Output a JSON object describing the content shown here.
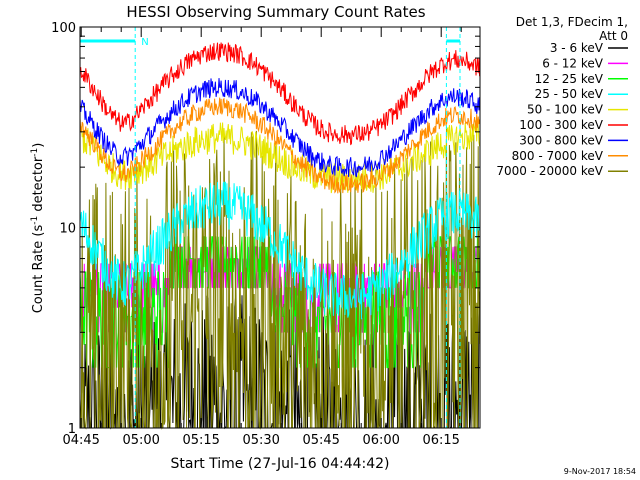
{
  "chart_data": {
    "type": "line",
    "title": "HESSI Observing Summary Count Rates",
    "xlabel": "Start Time (27-Jul-16 04:44:42)",
    "ylabel_parts": [
      "Count Rate (s",
      "-1",
      " detector",
      "-1",
      ")"
    ],
    "y_scale": "log",
    "ylim": [
      1,
      100
    ],
    "y_tick_labels": [
      "1",
      "10",
      "100"
    ],
    "xlim_minutes": [
      0,
      100
    ],
    "x_tick_labels": [
      "04:45",
      "05:00",
      "05:15",
      "05:30",
      "05:45",
      "06:00",
      "06:15"
    ],
    "legend_header": [
      "Det 1,3, FDecim 1,",
      "Att 0"
    ],
    "footer_date": "9-Nov-2017 18:54",
    "night_markers": [
      {
        "from_min": 0,
        "to_min": 13.8,
        "label": "N"
      },
      {
        "from_min": 91.6,
        "to_min": 103.0,
        "label": ""
      }
    ],
    "series": [
      {
        "name": "3 - 6 keV",
        "color": "#000000",
        "shape": "sparse",
        "base": 1.2,
        "peak": 1.6,
        "jitter": 0.6,
        "floor": 1.0
      },
      {
        "name": "6 - 12 keV",
        "color": "#ff00ff",
        "shape": "levels",
        "levels": [
          3.0,
          4.0,
          4.6,
          5.6,
          6.6
        ],
        "peak_levels": [
          5.0,
          6.0,
          7.0,
          8.0
        ]
      },
      {
        "name": "12 - 25 keV",
        "color": "#00ff00",
        "shape": "levels",
        "levels": [
          2.0,
          2.6,
          3.0,
          3.6,
          4.0,
          5.0,
          6.0
        ],
        "peak_levels": [
          5.0,
          6.0,
          7.0,
          8.0,
          9.0
        ]
      },
      {
        "name": "25 - 50 keV",
        "color": "#00ffff",
        "shape": "orbit",
        "base": 4.5,
        "peak": 13.0,
        "jitter": 0.12,
        "edge": 10.5
      },
      {
        "name": "50 - 100 keV",
        "color": "#e6e600",
        "shape": "orbit",
        "base": 17.5,
        "peak": 28.0,
        "jitter": 0.08,
        "edge": 29.0
      },
      {
        "name": "100 - 300 keV",
        "color": "#ff0000",
        "shape": "orbit",
        "base": 29.0,
        "peak": 76.0,
        "jitter": 0.05,
        "edge": 62.0
      },
      {
        "name": "300 - 800 keV",
        "color": "#0000ff",
        "shape": "orbit",
        "base": 20.0,
        "peak": 50.0,
        "jitter": 0.05,
        "edge": 40.0
      },
      {
        "name": "800 - 7000 keV",
        "color": "#ff8c00",
        "shape": "orbit",
        "base": 16.5,
        "peak": 40.0,
        "jitter": 0.05,
        "edge": 33.0
      },
      {
        "name": "7000 - 20000 keV",
        "color": "#808000",
        "shape": "sparse",
        "base": 3.0,
        "peak": 5.5,
        "jitter": 1.0,
        "floor": 1.0
      }
    ]
  }
}
